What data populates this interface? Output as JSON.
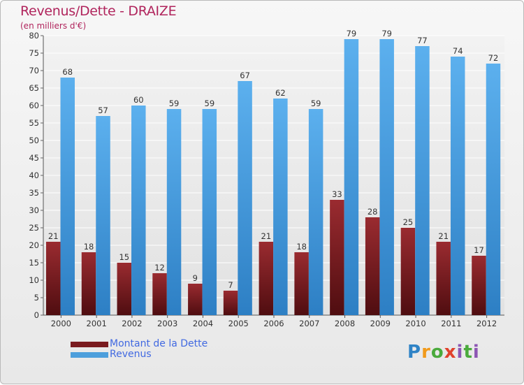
{
  "title": "Revenus/Dette - DRAIZE",
  "subtitle": "(en milliers d'€)",
  "colors": {
    "dette": "#7a1b1f",
    "revenus": "#4d9fdc",
    "title": "#b0245c",
    "legend_text": "#4169e1"
  },
  "legend": [
    {
      "label": "Montant de la Dette",
      "color_key": "dette"
    },
    {
      "label": "Revenus",
      "color_key": "revenus"
    }
  ],
  "logo_text": "Proxiti",
  "chart_data": {
    "type": "bar",
    "categories": [
      "2000",
      "2001",
      "2002",
      "2003",
      "2004",
      "2005",
      "2006",
      "2007",
      "2008",
      "2009",
      "2010",
      "2011",
      "2012"
    ],
    "series": [
      {
        "name": "Montant de la Dette",
        "values": [
          21,
          18,
          15,
          12,
          9,
          7,
          21,
          18,
          33,
          28,
          25,
          21,
          17
        ]
      },
      {
        "name": "Revenus",
        "values": [
          68,
          57,
          60,
          59,
          59,
          67,
          62,
          59,
          79,
          79,
          77,
          74,
          72
        ]
      }
    ],
    "ylim": [
      0,
      80
    ],
    "yticks": [
      0,
      5,
      10,
      15,
      20,
      25,
      30,
      35,
      40,
      45,
      50,
      55,
      60,
      65,
      70,
      75,
      80
    ],
    "grid": true,
    "legend_position": "bottom-left"
  }
}
